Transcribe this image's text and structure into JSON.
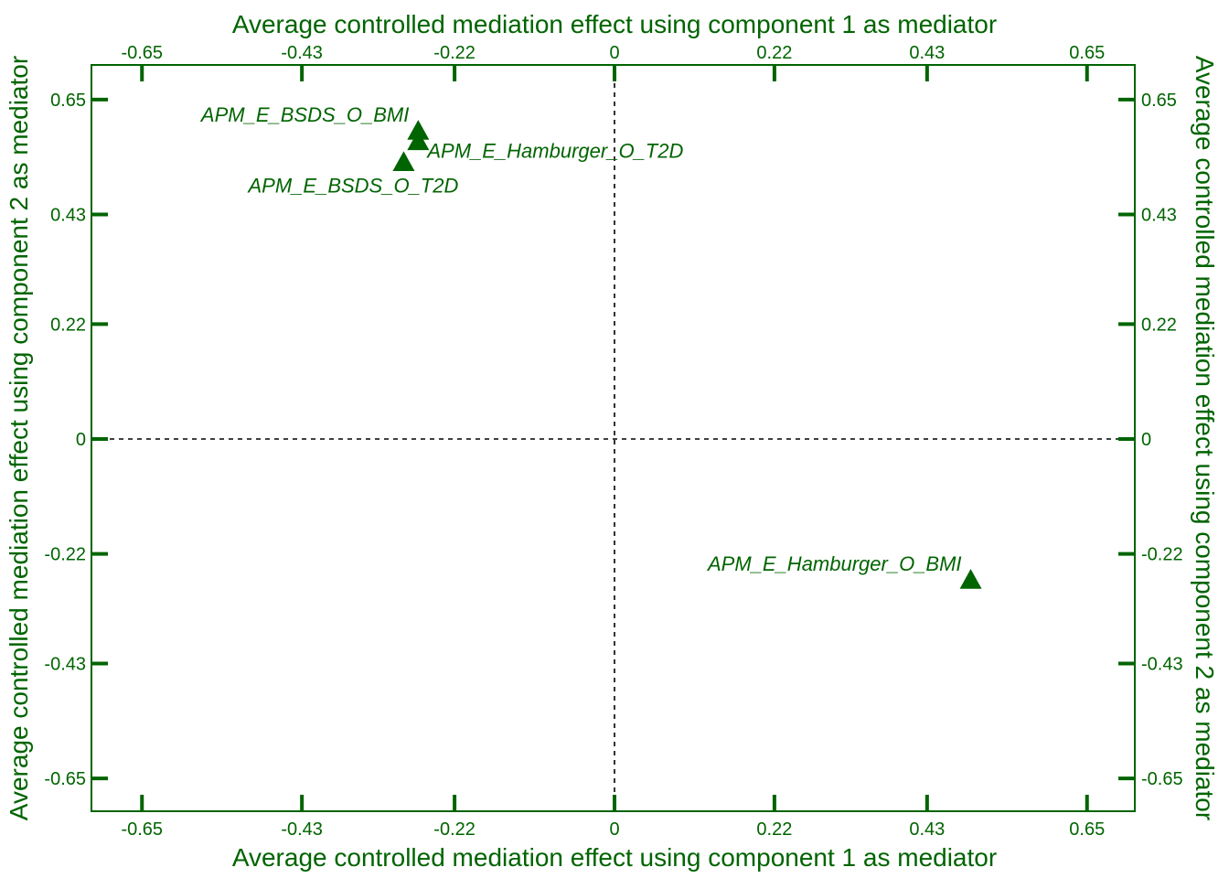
{
  "chart_data": {
    "type": "scatter",
    "title": "",
    "xlabel": "Average controlled mediation effect using component 1 as mediator",
    "ylabel": "Average controlled mediation effect using component 2 as mediator",
    "xlim": [
      -0.72,
      0.72
    ],
    "ylim": [
      -0.72,
      0.72
    ],
    "xticks": [
      -0.65,
      -0.43,
      -0.22,
      0,
      0.22,
      0.43,
      0.65
    ],
    "xtick_labels": [
      "-0.65",
      "-0.43",
      "-0.22",
      "0",
      "0.22",
      "0.43",
      "0.65"
    ],
    "yticks": [
      0.65,
      0.43,
      0.22,
      0,
      -0.22,
      -0.43,
      -0.65
    ],
    "ytick_labels": [
      "0.65",
      "0.43",
      "0.22",
      "0",
      "-0.22",
      "-0.43",
      "-0.65"
    ],
    "reference_lines": {
      "x": 0,
      "y": 0,
      "style": "dashed"
    },
    "grid": false,
    "marker": "triangle",
    "color": "#006400",
    "points": [
      {
        "label": "APM_E_BSDS_O_BMI",
        "x": -0.27,
        "y": 0.59,
        "label_anchor": "end"
      },
      {
        "label": "APM_E_Hamburger_O_T2D",
        "x": -0.27,
        "y": 0.57,
        "label_anchor": "start"
      },
      {
        "label": "APM_E_BSDS_O_T2D",
        "x": -0.29,
        "y": 0.53,
        "label_anchor": "middle"
      },
      {
        "label": "APM_E_Hamburger_O_BMI",
        "x": 0.49,
        "y": -0.27,
        "label_anchor": "end"
      }
    ]
  }
}
